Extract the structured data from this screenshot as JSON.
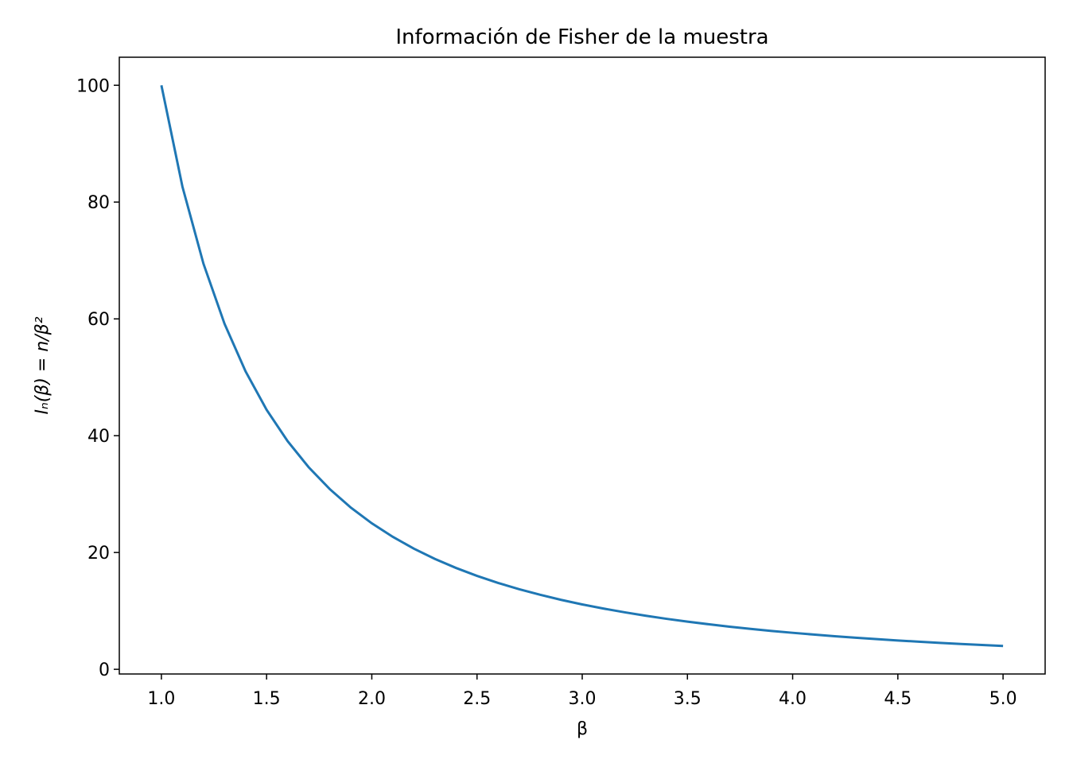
{
  "chart_data": {
    "type": "line",
    "title": "Información de Fisher de la muestra",
    "x_label": "β",
    "y_label": "Iₙ(β) = n/β²",
    "x": [
      1.0,
      1.1,
      1.2,
      1.3,
      1.4,
      1.5,
      1.6,
      1.7,
      1.8,
      1.9,
      2.0,
      2.1,
      2.2,
      2.3,
      2.4,
      2.5,
      2.6,
      2.7,
      2.8,
      2.9,
      3.0,
      3.1,
      3.2,
      3.3,
      3.4,
      3.5,
      3.6,
      3.7,
      3.8,
      3.9,
      4.0,
      4.1,
      4.2,
      4.3,
      4.4,
      4.5,
      4.6,
      4.7,
      4.8,
      4.9,
      5.0
    ],
    "series": [
      {
        "color": "#1f77b4",
        "values": [
          100,
          82.64,
          69.44,
          59.17,
          51.02,
          44.44,
          39.06,
          34.6,
          30.86,
          27.7,
          25,
          22.68,
          20.66,
          18.9,
          17.36,
          16,
          14.79,
          13.72,
          12.76,
          11.89,
          11.11,
          10.41,
          9.77,
          9.18,
          8.65,
          8.16,
          7.72,
          7.3,
          6.93,
          6.57,
          6.25,
          5.95,
          5.67,
          5.41,
          5.17,
          4.94,
          4.73,
          4.53,
          4.34,
          4.16,
          4
        ]
      }
    ],
    "xlim": [
      0.8,
      5.2
    ],
    "ylim": [
      -0.8,
      104.8
    ],
    "xticks": [
      {
        "value": 1,
        "label": "1.0"
      },
      {
        "value": 1.5,
        "label": "1.5"
      },
      {
        "value": 2,
        "label": "2.0"
      },
      {
        "value": 2.5,
        "label": "2.5"
      },
      {
        "value": 3,
        "label": "3.0"
      },
      {
        "value": 3.5,
        "label": "3.5"
      },
      {
        "value": 4,
        "label": "4.0"
      },
      {
        "value": 4.5,
        "label": "4.5"
      },
      {
        "value": 5,
        "label": "5.0"
      }
    ],
    "yticks": [
      0,
      20,
      40,
      60,
      80,
      100
    ],
    "grid": false
  }
}
